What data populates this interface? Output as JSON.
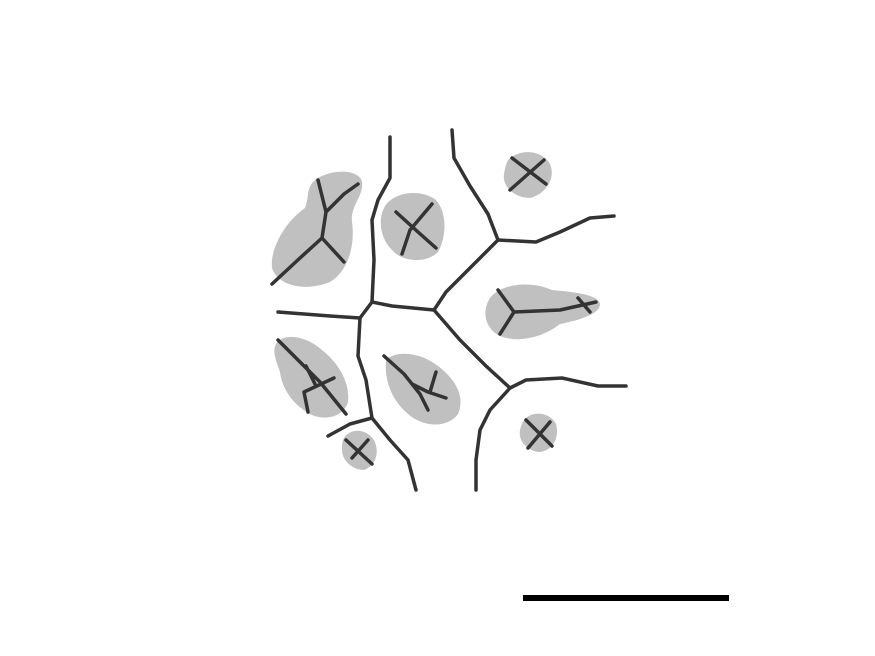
{
  "figure": {
    "colors": {
      "background": "#ffffff",
      "region_fill": "#c0c0c0",
      "lines": "#333333",
      "scale_bar": "#000000"
    },
    "scale_bar": {
      "label": ""
    }
  }
}
